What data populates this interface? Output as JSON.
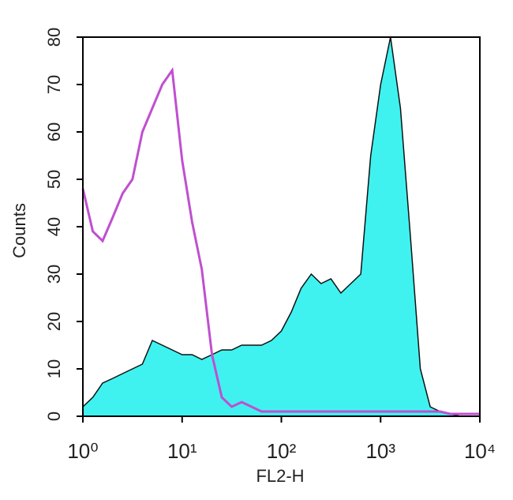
{
  "chart_data": {
    "type": "line",
    "xlabel": "FL2-H",
    "ylabel": "Counts",
    "xscale": "log",
    "x": [
      1,
      1.26,
      1.58,
      2,
      2.51,
      3.16,
      3.98,
      5.01,
      6.31,
      7.94,
      10,
      12.6,
      15.8,
      20,
      25.1,
      31.6,
      39.8,
      50.1,
      63.1,
      79.4,
      100,
      126,
      158,
      200,
      251,
      316,
      398,
      501,
      631,
      794,
      1000,
      1259,
      1585,
      1995,
      2512,
      3162,
      3981,
      5012,
      6310,
      7943,
      10000
    ],
    "series": [
      {
        "color": "#3ff2f0",
        "filled": true,
        "values": [
          2,
          4,
          7,
          8,
          9,
          10,
          11,
          16,
          15,
          14,
          13,
          13,
          12,
          13,
          14,
          14,
          15,
          15,
          15,
          16,
          18,
          22,
          27,
          30,
          28,
          29,
          26,
          28,
          30,
          55,
          70,
          80,
          65,
          38,
          10,
          2,
          1,
          0.5,
          0,
          0,
          0
        ]
      },
      {
        "color": "#c04fd0",
        "filled": false,
        "values": [
          48,
          39,
          37,
          42,
          47,
          50,
          60,
          65,
          70,
          73,
          54,
          41,
          31,
          13,
          4,
          2,
          3,
          2,
          1,
          1,
          1,
          1,
          1,
          1,
          1,
          1,
          1,
          1,
          1,
          1,
          1,
          1,
          1,
          1,
          1,
          1,
          1,
          0.5,
          0.5,
          0.5,
          0.5
        ]
      }
    ],
    "xlim": [
      1,
      10000
    ],
    "xticks": [
      {
        "value": 1,
        "label": "10⁰"
      },
      {
        "value": 10,
        "label": "10¹"
      },
      {
        "value": 100,
        "label": "10²"
      },
      {
        "value": 1000,
        "label": "10³"
      },
      {
        "value": 10000,
        "label": "10⁴"
      }
    ],
    "ylim": [
      0,
      80
    ],
    "yticks": [
      0,
      10,
      20,
      30,
      40,
      50,
      60,
      70,
      80
    ]
  }
}
